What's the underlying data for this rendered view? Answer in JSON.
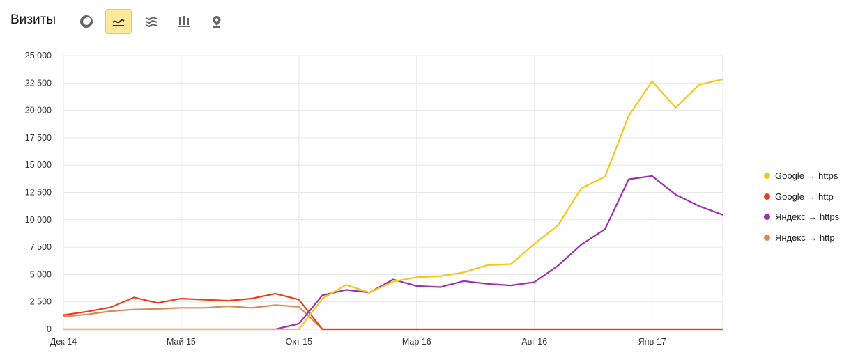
{
  "header": {
    "title": "Визиты",
    "tools": [
      {
        "icon": "pie-chart-icon",
        "active": false
      },
      {
        "icon": "line-chart-icon",
        "active": true
      },
      {
        "icon": "stacked-area-icon",
        "active": false
      },
      {
        "icon": "column-chart-icon",
        "active": false
      },
      {
        "icon": "map-pin-icon",
        "active": false
      }
    ]
  },
  "chart_data": {
    "type": "line",
    "x": [
      "Дек 14",
      "Янв 15",
      "Фев 15",
      "Мар 15",
      "Апр 15",
      "Май 15",
      "Июн 15",
      "Июл 15",
      "Авг 15",
      "Сен 15",
      "Окт 15",
      "Ноя 15",
      "Дек 15",
      "Янв 16",
      "Фев 16",
      "Мар 16",
      "Апр 16",
      "Май 16",
      "Июн 16",
      "Июл 16",
      "Авг 16",
      "Сен 16",
      "Окт 16",
      "Ноя 16",
      "Дек 16",
      "Янв 17",
      "Фев 17",
      "Мар 17",
      "Апр 17"
    ],
    "xticks": [
      "Дек 14",
      "Май 15",
      "Окт 15",
      "Мар 16",
      "Авг 16",
      "Янв 17"
    ],
    "xtick_index": [
      0,
      5,
      10,
      15,
      20,
      25
    ],
    "yticks": [
      "0",
      "2 500",
      "5 000",
      "7 500",
      "10 000",
      "12 500",
      "15 000",
      "17 500",
      "20 000",
      "22 500",
      "25 000"
    ],
    "ylim": [
      0,
      25000
    ],
    "grid": true,
    "legend_position": "right",
    "series": [
      {
        "name": "Google → https",
        "color": "#f5c518",
        "values": [
          0,
          0,
          0,
          0,
          0,
          0,
          0,
          0,
          0,
          0,
          0,
          2800,
          4050,
          3350,
          4350,
          4750,
          4850,
          5200,
          5850,
          5950,
          7800,
          9500,
          12900,
          13950,
          19500,
          22650,
          20250,
          22350,
          22850
        ]
      },
      {
        "name": "Google → http",
        "color": "#e8401c",
        "values": [
          1300,
          1600,
          2000,
          2900,
          2400,
          2800,
          2700,
          2600,
          2800,
          3250,
          2700,
          0,
          0,
          0,
          0,
          0,
          0,
          0,
          0,
          0,
          0,
          0,
          0,
          0,
          0,
          0,
          0,
          0,
          0
        ]
      },
      {
        "name": "Яндекс → https",
        "color": "#9b2fae",
        "values": [
          0,
          0,
          0,
          0,
          0,
          0,
          0,
          0,
          0,
          0,
          500,
          3100,
          3600,
          3350,
          4550,
          3950,
          3850,
          4400,
          4150,
          4000,
          4300,
          5800,
          7750,
          9150,
          13700,
          14000,
          12300,
          11250,
          10450
        ]
      },
      {
        "name": "Яндекс → http",
        "color": "#d98a55",
        "values": [
          1150,
          1350,
          1650,
          1800,
          1850,
          1950,
          1950,
          2100,
          1950,
          2200,
          2050,
          0,
          0,
          0,
          0,
          0,
          0,
          0,
          0,
          0,
          0,
          0,
          0,
          0,
          0,
          0,
          0,
          0,
          0
        ]
      }
    ]
  }
}
